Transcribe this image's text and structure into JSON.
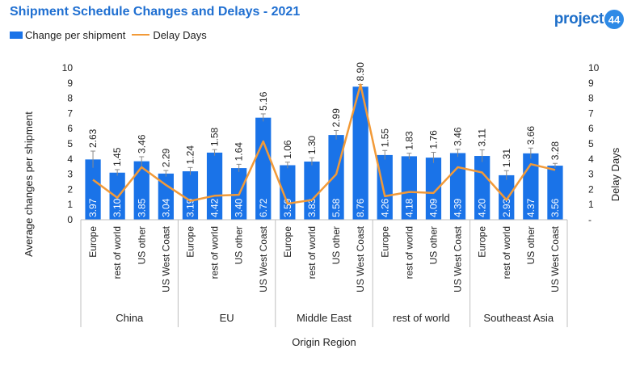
{
  "brand": {
    "name": "project",
    "badge": "44"
  },
  "chart_data": {
    "type": "bar",
    "title": "Shipment Schedule Changes and Delays - 2021",
    "xlabel": "Origin Region",
    "ylabel": "Average changes per shipment",
    "y2label": "Delay Days",
    "ylim": [
      0,
      10
    ],
    "y2lim": [
      0,
      10
    ],
    "yticks": [
      "0",
      "1",
      "2",
      "3",
      "4",
      "5",
      "6",
      "7",
      "8",
      "9",
      "10"
    ],
    "y2ticks": [
      "-",
      "1",
      "2",
      "3",
      "4",
      "5",
      "6",
      "7",
      "8",
      "9",
      "10"
    ],
    "legend_position": "top-left",
    "grid": false,
    "groups": [
      {
        "label": "China",
        "categories": [
          "Europe",
          "rest of world",
          "US other",
          "US West Coast"
        ]
      },
      {
        "label": "EU",
        "categories": [
          "Europe",
          "rest of world",
          "US other",
          "US West Coast"
        ]
      },
      {
        "label": "Middle East",
        "categories": [
          "Europe",
          "rest of world",
          "US other",
          "US West Coast"
        ]
      },
      {
        "label": "rest of world",
        "categories": [
          "Europe",
          "rest of world",
          "US other",
          "US West Coast"
        ]
      },
      {
        "label": "Southeast Asia",
        "categories": [
          "Europe",
          "rest of world",
          "US other",
          "US West Coast"
        ]
      }
    ],
    "series": [
      {
        "name": "Change per shipment",
        "type": "bar",
        "axis": "left",
        "color": "#1a73e8",
        "values": [
          3.97,
          3.1,
          3.85,
          3.04,
          3.19,
          4.42,
          3.4,
          6.72,
          3.59,
          3.83,
          5.58,
          8.76,
          4.26,
          4.18,
          4.09,
          4.39,
          4.2,
          2.93,
          4.37,
          3.56
        ],
        "labels": [
          "3.97",
          "3.10",
          "3.85",
          "3.04",
          "3.19",
          "4.42",
          "3.40",
          "6.72",
          "3.59",
          "3.83",
          "5.58",
          "8.76",
          "4.26",
          "4.18",
          "4.09",
          "4.39",
          "4.20",
          "2.93",
          "4.37",
          "3.56"
        ]
      },
      {
        "name": "Delay Days",
        "type": "line",
        "axis": "right",
        "color": "#f29a38",
        "values": [
          2.63,
          1.45,
          3.46,
          2.29,
          1.24,
          1.58,
          1.64,
          5.16,
          1.06,
          1.3,
          2.99,
          8.9,
          1.55,
          1.83,
          1.76,
          3.46,
          3.11,
          1.31,
          3.66,
          3.28
        ],
        "labels": [
          "2.63",
          "1.45",
          "3.46",
          "2.29",
          "1.24",
          "1.58",
          "1.64",
          "5.16",
          "1.06",
          "1.30",
          "2.99",
          "8.90",
          "1.55",
          "1.83",
          "1.76",
          "3.46",
          "3.11",
          "1.31",
          "3.66",
          "3.28"
        ]
      }
    ],
    "errors": [
      0.55,
      0.2,
      0.3,
      0.2,
      0.25,
      0.2,
      0.25,
      0.25,
      0.2,
      0.25,
      0.3,
      0.15,
      0.3,
      0.2,
      0.35,
      0.25,
      0.4,
      0.3,
      0.35,
      0.15
    ],
    "colors": {
      "title": "#1f6fd1",
      "bar_label": "#ffffff",
      "brand": "#1e6fc9",
      "badge": "#2e8ae6"
    }
  }
}
